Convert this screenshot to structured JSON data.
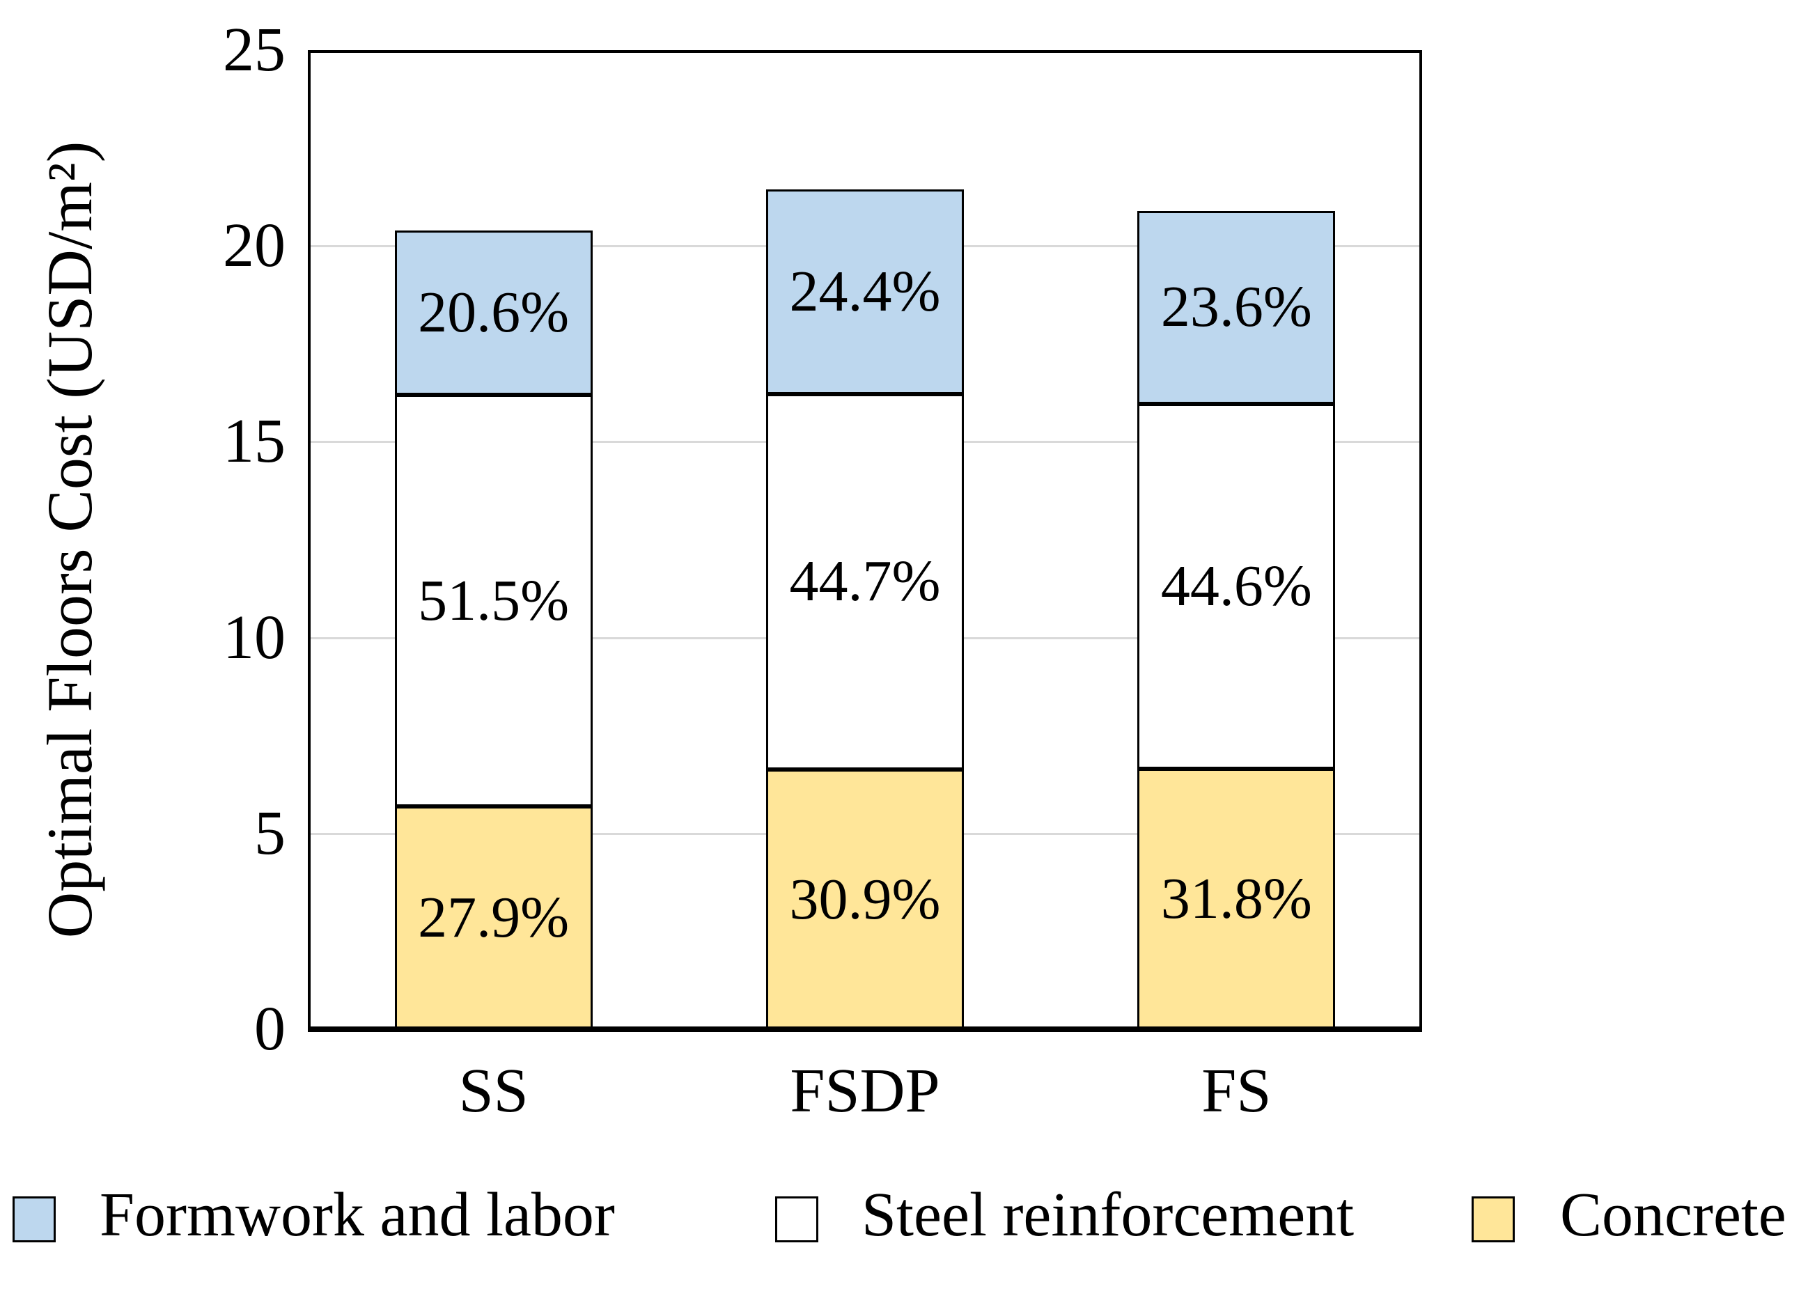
{
  "chart_data": {
    "type": "bar",
    "stacked": true,
    "categories": [
      "SS",
      "FSDP",
      "FS"
    ],
    "series": [
      {
        "name": "Concrete",
        "color": "#FFE699",
        "values": [
          5.69,
          6.63,
          6.65
        ],
        "percent_labels": [
          "27.9%",
          "30.9%",
          "31.8%"
        ]
      },
      {
        "name": "Steel reinforcement",
        "color": "#FFFFFF",
        "values": [
          10.5,
          9.59,
          9.32
        ],
        "percent_labels": [
          "51.5%",
          "44.7%",
          "44.6%"
        ]
      },
      {
        "name": "Formwork and labor",
        "color": "#BDD7EE",
        "values": [
          4.21,
          5.23,
          4.93
        ],
        "percent_labels": [
          "20.6%",
          "24.4%",
          "23.6%"
        ]
      }
    ],
    "bar_totals": [
      20.4,
      21.45,
      20.9
    ],
    "ylabel": "Optimal Floors Cost (USD/m²)",
    "ylim": [
      0,
      25
    ],
    "yticks": [
      0,
      5,
      10,
      15,
      20,
      25
    ],
    "grid": true,
    "gridline_color": "#D9D9D9",
    "bar_border_color": "#000000",
    "axis_color": "#000000",
    "legend_position": "bottom"
  },
  "legend": {
    "items": [
      {
        "label": "Formwork and labor",
        "color": "#BDD7EE"
      },
      {
        "label": "Steel reinforcement",
        "color": "#FFFFFF"
      },
      {
        "label": "Concrete",
        "color": "#FFE699"
      }
    ]
  }
}
